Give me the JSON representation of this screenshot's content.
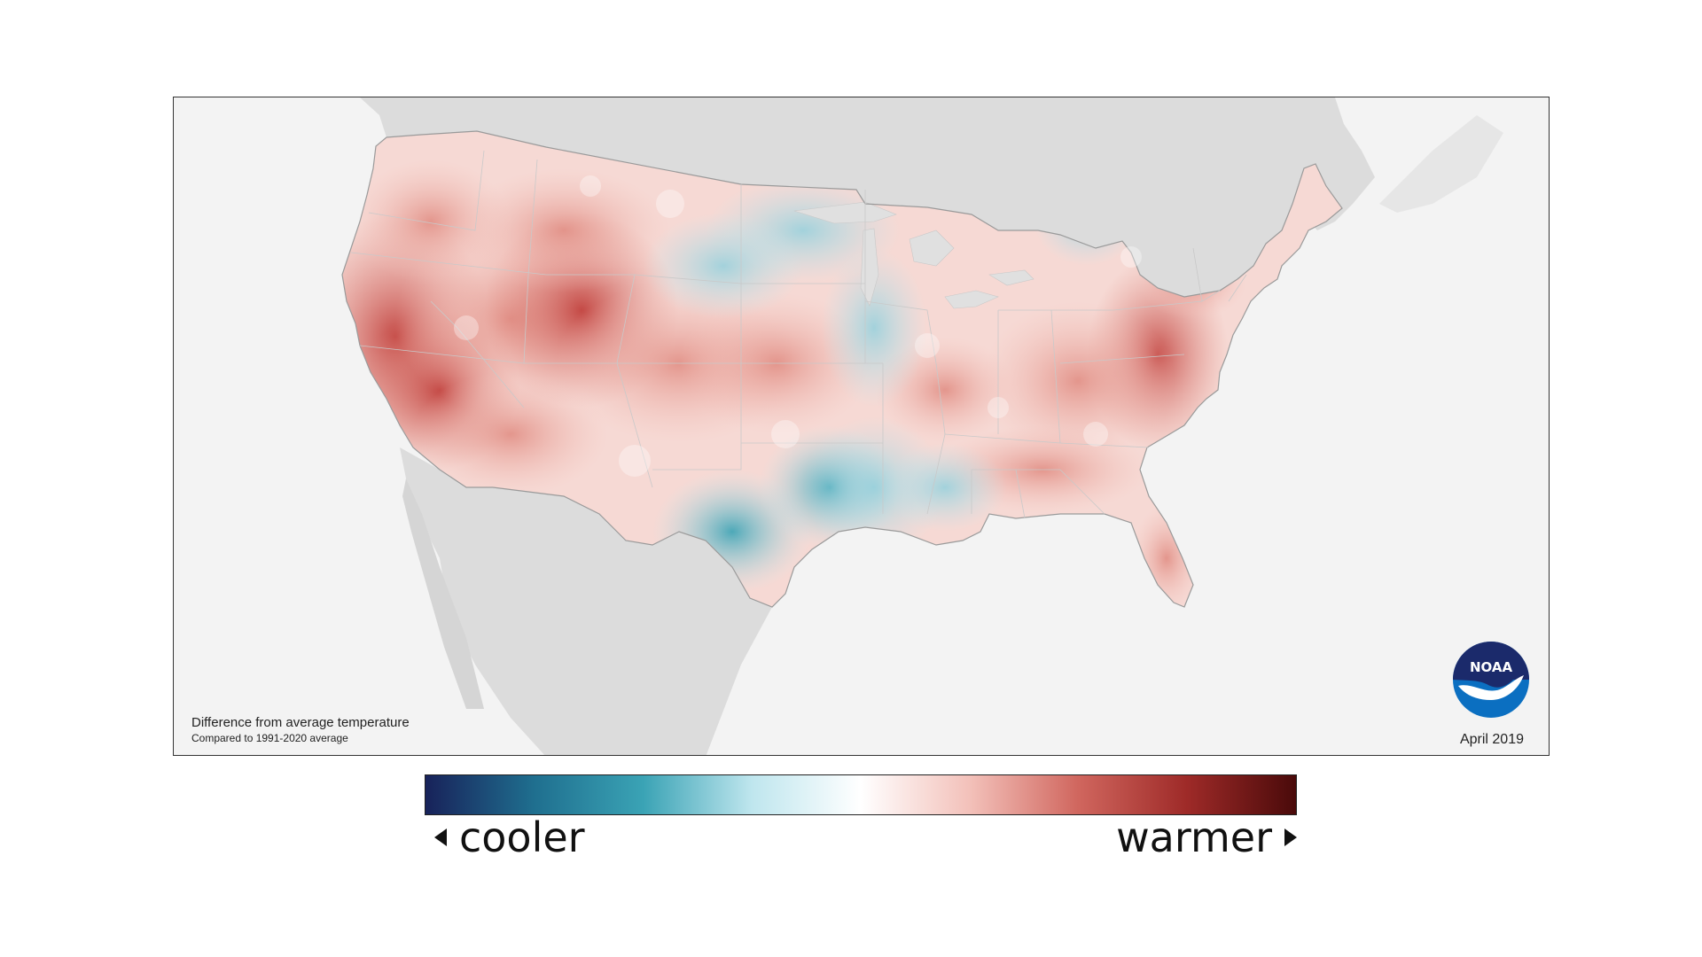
{
  "map": {
    "caption_line1": "Difference from average temperature",
    "caption_line2": "Compared to 1991-2020 average",
    "date": "April 2019",
    "logo_text": "NOAA",
    "colors": {
      "ocean": "#f3f3f3",
      "neighbor_land": "#dcdcdc",
      "cool_strong": "#3aa3b5",
      "cool_light": "#bfe6ee",
      "neutral": "#ffffff",
      "warm_light": "#f3c1ba",
      "warm_mid": "#e08a80",
      "warm_strong": "#c2433f",
      "noaa_blue": "#0b6fc1",
      "noaa_navy": "#1b2a6b"
    }
  },
  "legend": {
    "cooler_label": "cooler",
    "warmer_label": "warmer",
    "gradient_stops": [
      "#18225a",
      "#1f6f8f",
      "#3aa3b5",
      "#bfe6ee",
      "#ffffff",
      "#f3c1ba",
      "#d0665e",
      "#9e2a28",
      "#4a0a0a"
    ]
  }
}
